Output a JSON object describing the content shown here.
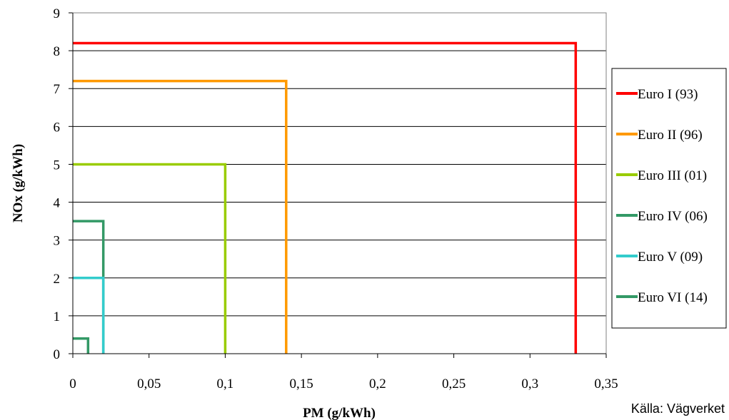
{
  "chart_data": {
    "type": "line",
    "xlabel": "PM (g/kWh)",
    "ylabel": "NOx (g/kWh)",
    "xlim": [
      0,
      0.35
    ],
    "ylim": [
      0,
      9
    ],
    "x_ticks": [
      "0",
      "0,05",
      "0,1",
      "0,15",
      "0,2",
      "0,25",
      "0,3",
      "0,35"
    ],
    "y_ticks": [
      "0",
      "1",
      "2",
      "3",
      "4",
      "5",
      "6",
      "7",
      "8",
      "9"
    ],
    "grid": "horizontal",
    "legend_position": "right",
    "series": [
      {
        "name": "Euro I (93)",
        "color": "#ff0000",
        "pm": 0.33,
        "nox": 8.2
      },
      {
        "name": "Euro II (96)",
        "color": "#ff9900",
        "pm": 0.14,
        "nox": 7.2
      },
      {
        "name": "Euro III (01)",
        "color": "#99cc00",
        "pm": 0.1,
        "nox": 5.0
      },
      {
        "name": "Euro IV (06)",
        "color": "#339966",
        "pm": 0.02,
        "nox": 3.5
      },
      {
        "name": "Euro V (09)",
        "color": "#33cccc",
        "pm": 0.02,
        "nox": 2.0
      },
      {
        "name": "Euro VI (14)",
        "color": "#339966",
        "pm": 0.01,
        "nox": 0.4
      }
    ]
  },
  "source_note": "Källa: Vägverket"
}
